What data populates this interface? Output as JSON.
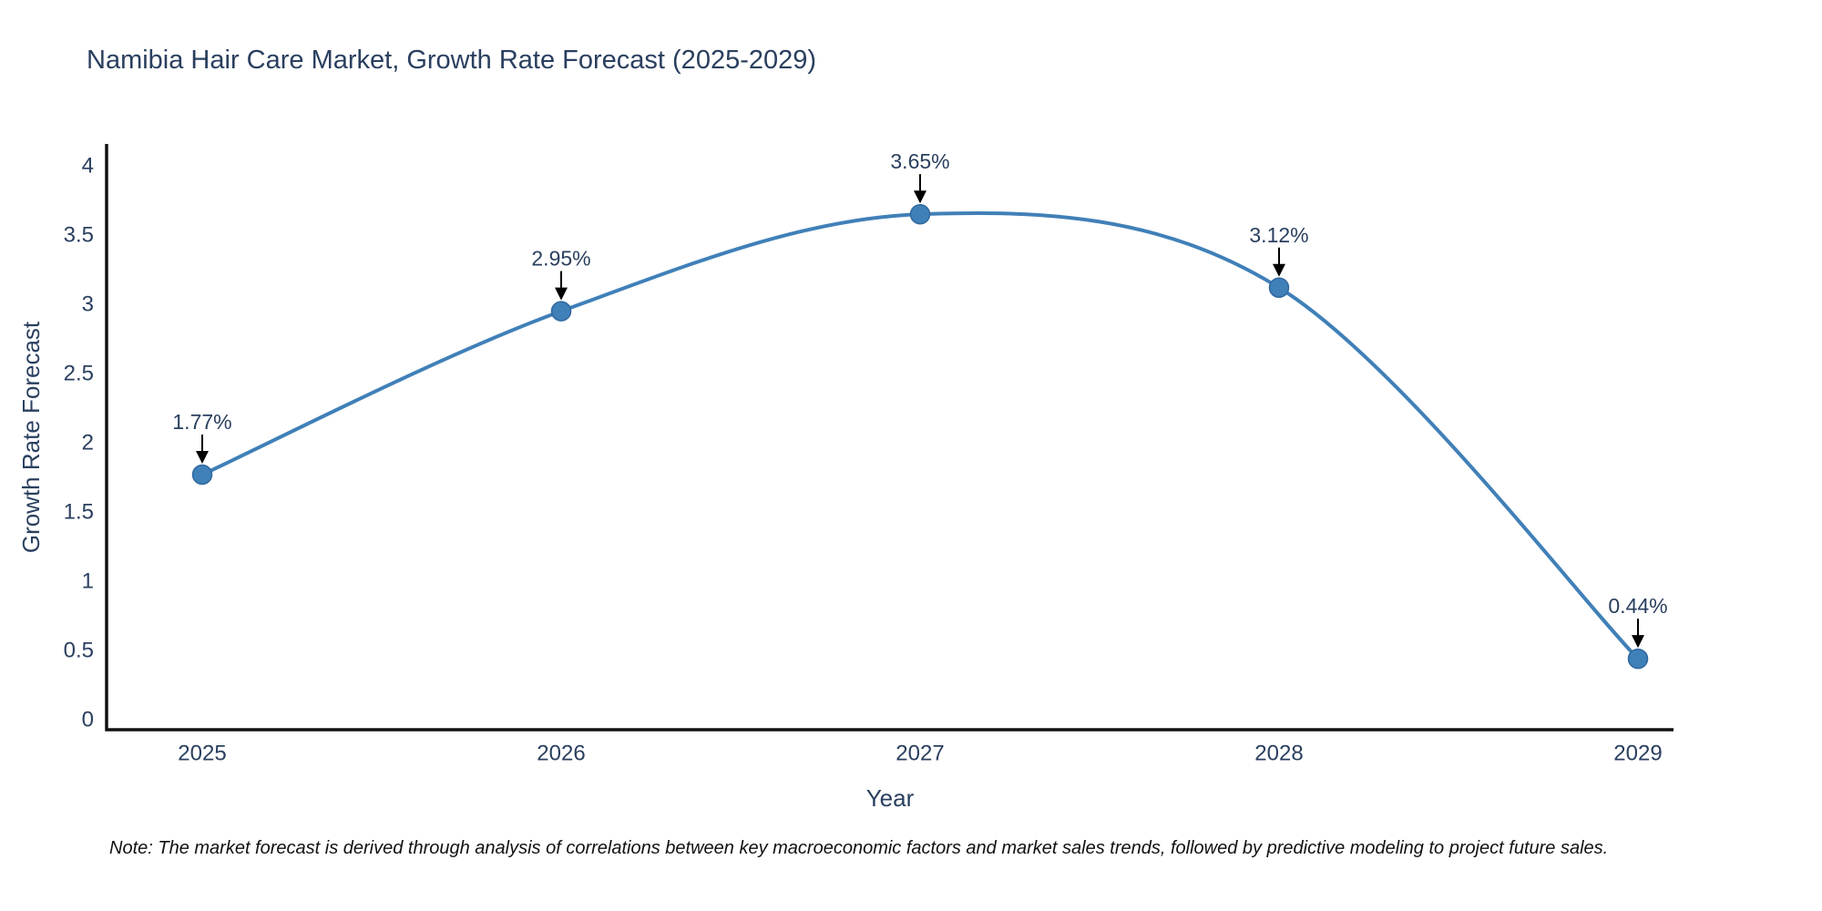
{
  "title": "Namibia Hair Care Market, Growth Rate Forecast (2025-2029)",
  "note": "Note: The market forecast is derived through analysis of correlations between key macroeconomic factors and market sales trends, followed by predictive modeling to project future sales.",
  "colors": {
    "line": "#4080b8",
    "marker_fill": "#4080b8",
    "marker_edge": "#30689e",
    "text": "#2a3f5f",
    "axis_line": "#111111",
    "arrow": "#000000",
    "note_text": "#111111",
    "background": "#ffffff"
  },
  "chart_data": {
    "type": "line",
    "title": "Namibia Hair Care Market, Growth Rate Forecast (2025-2029)",
    "x": [
      2025,
      2026,
      2027,
      2028,
      2029
    ],
    "y": [
      1.77,
      2.95,
      3.65,
      3.12,
      0.44
    ],
    "point_labels": [
      "1.77%",
      "2.95%",
      "3.65%",
      "3.12%",
      "0.44%"
    ],
    "xticks": [
      "2025",
      "2026",
      "2027",
      "2028",
      "2029"
    ],
    "yticks": [
      "0",
      "0.5",
      "1",
      "1.5",
      "2",
      "2.5",
      "3",
      "3.5",
      "4"
    ],
    "xlabel": "Year",
    "ylabel": "Growth Rate Forecast",
    "ylim": [
      0,
      4
    ],
    "grid": false,
    "legend": "none",
    "line_shape": "spline",
    "marker": "circle",
    "annotation_style": "text-with-down-arrow"
  }
}
